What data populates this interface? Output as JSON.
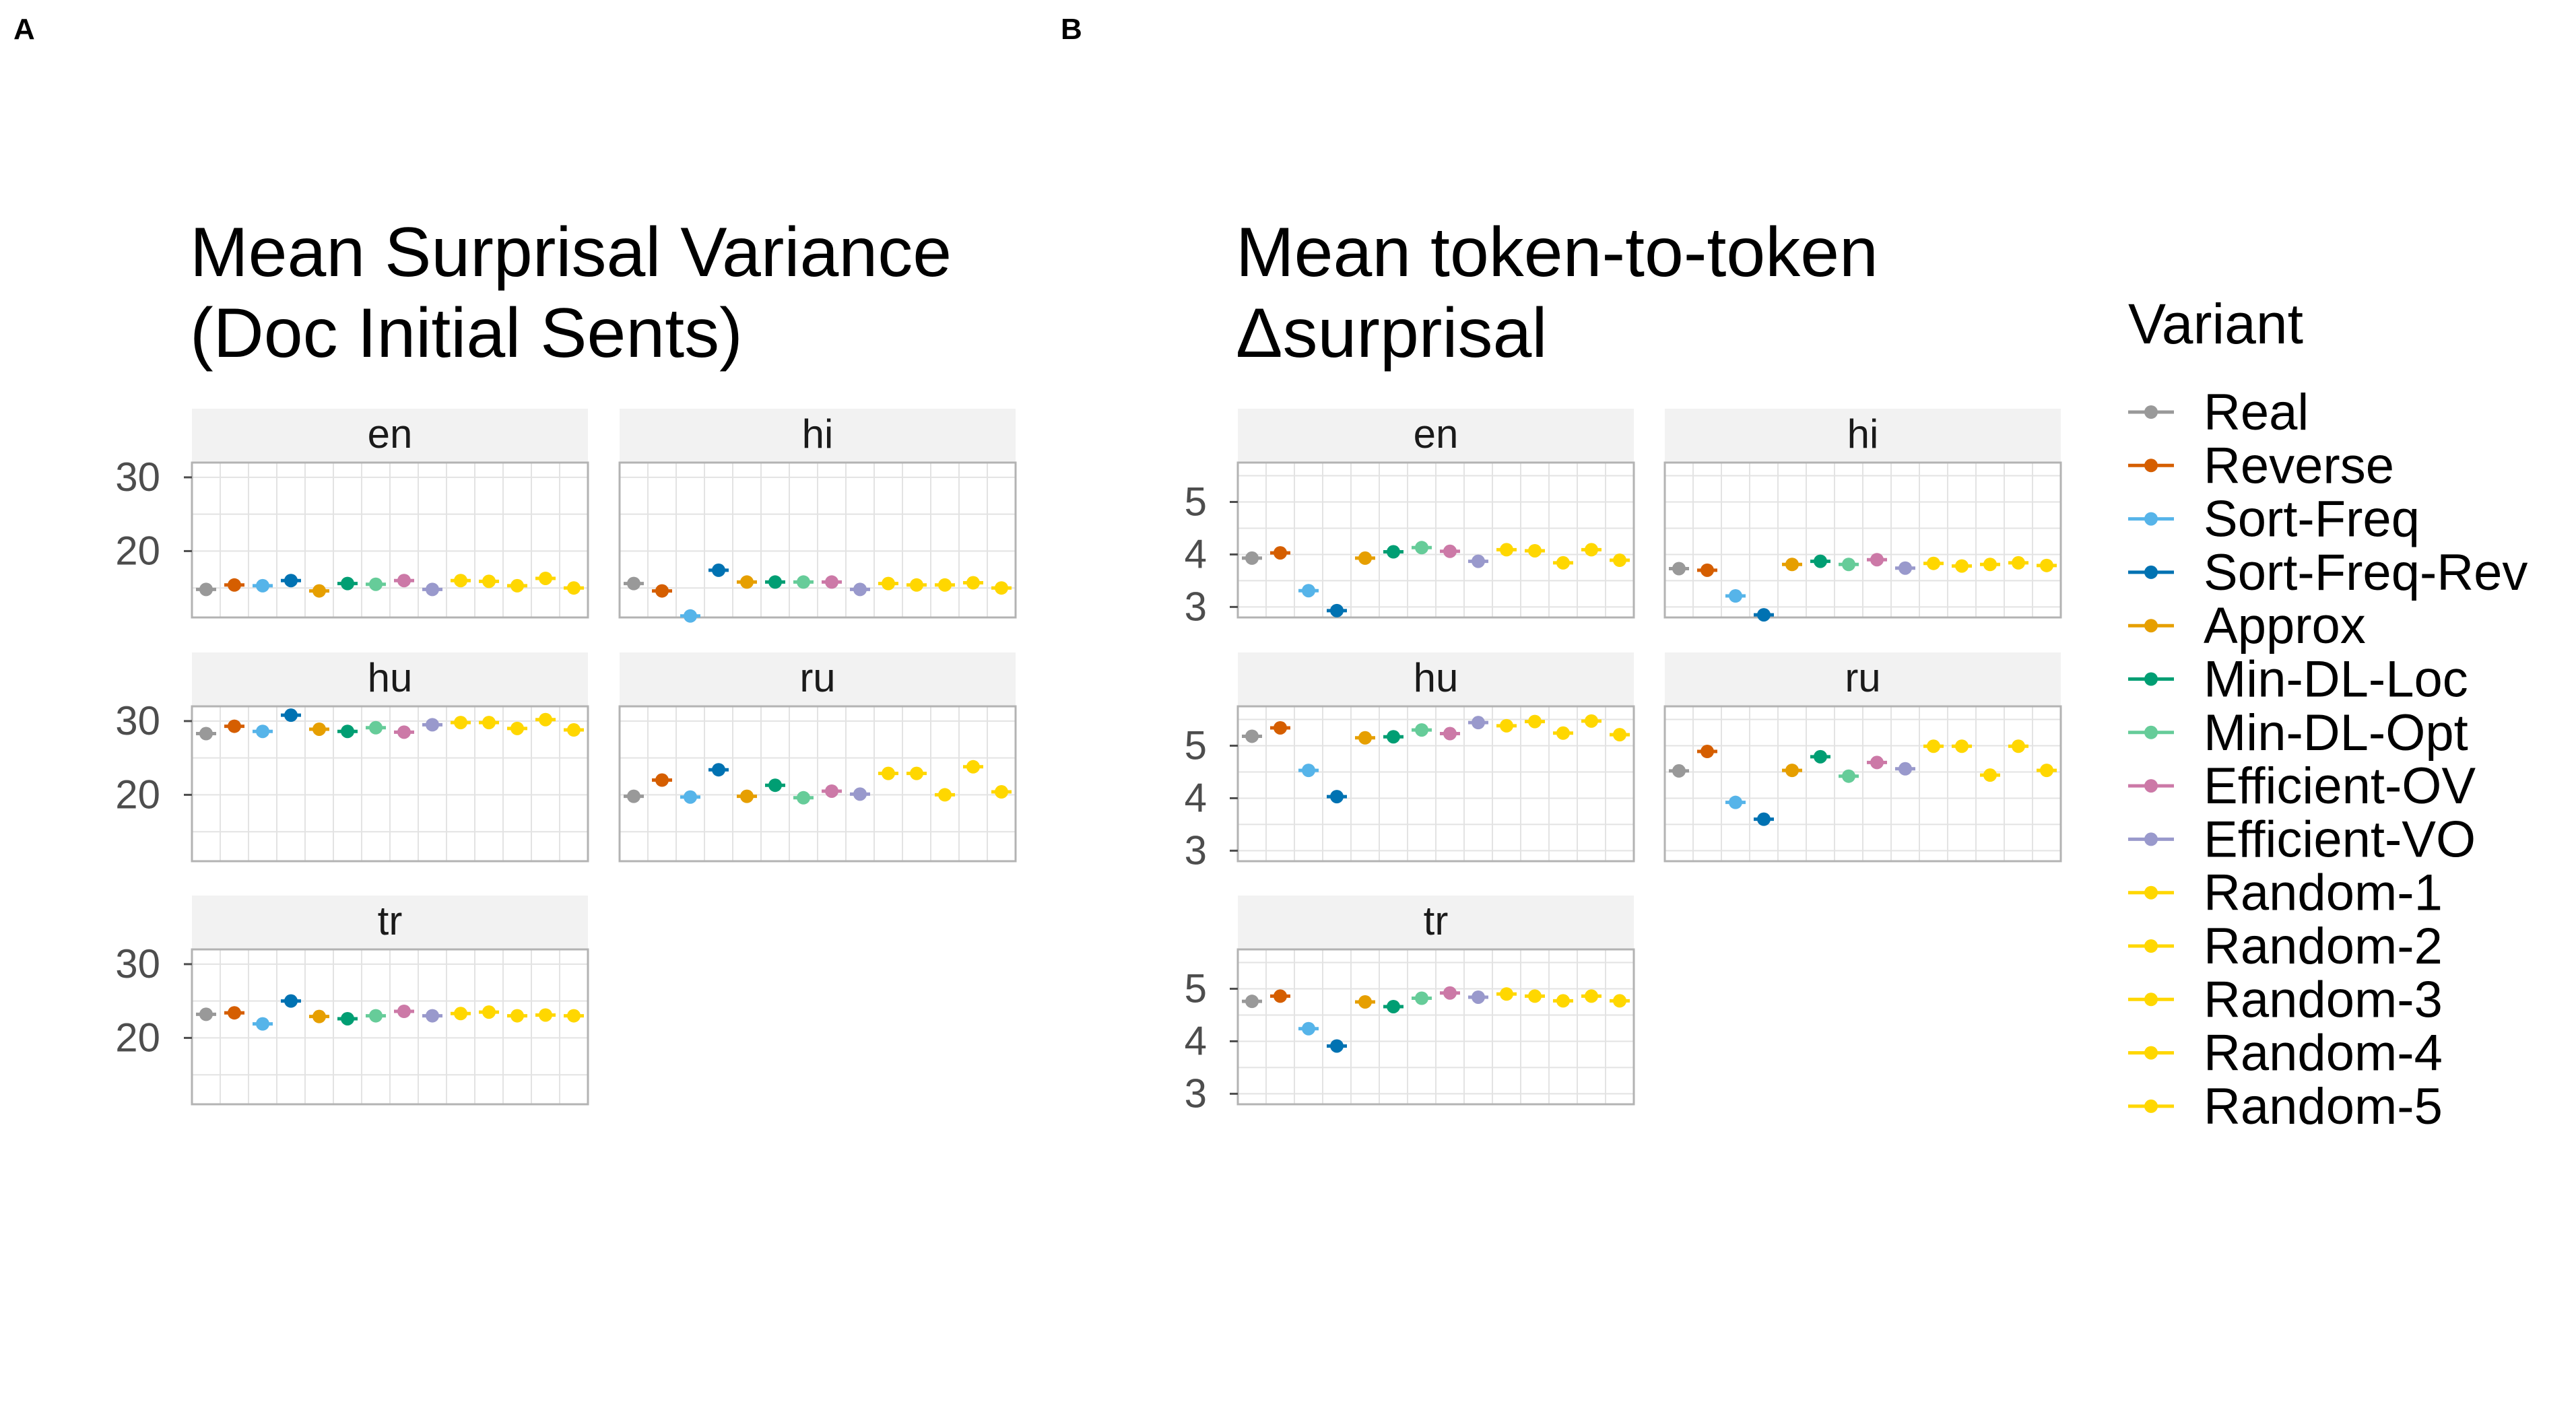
{
  "panel_labels": [
    "A",
    "B"
  ],
  "legend": {
    "title": "Variant",
    "items": [
      {
        "label": "Real",
        "color": "#999999"
      },
      {
        "label": "Reverse",
        "color": "#D55E00"
      },
      {
        "label": "Sort-Freq",
        "color": "#56B4E9"
      },
      {
        "label": "Sort-Freq-Rev",
        "color": "#0072B2"
      },
      {
        "label": "Approx",
        "color": "#E69F00"
      },
      {
        "label": "Min-DL-Loc",
        "color": "#009E73"
      },
      {
        "label": "Min-DL-Opt",
        "color": "#66CC99"
      },
      {
        "label": "Efficient-OV",
        "color": "#CC79A7"
      },
      {
        "label": "Efficient-VO",
        "color": "#9999CC"
      },
      {
        "label": "Random-1",
        "color": "#FFD700"
      },
      {
        "label": "Random-2",
        "color": "#FFD700"
      },
      {
        "label": "Random-3",
        "color": "#FFD700"
      },
      {
        "label": "Random-4",
        "color": "#FFD700"
      },
      {
        "label": "Random-5",
        "color": "#FFD700"
      }
    ]
  },
  "chart_data": [
    {
      "type": "scatter",
      "panel": "A",
      "title_lines": [
        "Mean Surprisal Variance",
        "(Doc Initial Sents)"
      ],
      "ylim": [
        11,
        32
      ],
      "yticks": [
        20,
        30
      ],
      "grid": true,
      "facets": [
        {
          "name": "en",
          "values": [
            14.8,
            15.4,
            15.3,
            16.0,
            14.6,
            15.6,
            15.5,
            16.0,
            14.8,
            16.0,
            15.9,
            15.3,
            16.3,
            15.0
          ]
        },
        {
          "name": "hi",
          "values": [
            15.6,
            14.6,
            11.2,
            17.4,
            15.8,
            15.8,
            15.8,
            15.8,
            14.8,
            15.6,
            15.4,
            15.4,
            15.7,
            15.0
          ]
        },
        {
          "name": "hu",
          "values": [
            28.3,
            29.3,
            28.6,
            30.8,
            28.9,
            28.6,
            29.1,
            28.5,
            29.5,
            29.8,
            29.8,
            29.0,
            30.2,
            28.8
          ]
        },
        {
          "name": "ru",
          "values": [
            19.8,
            22.0,
            19.7,
            23.4,
            19.8,
            21.3,
            19.6,
            20.5,
            20.1,
            22.9,
            22.9,
            20.0,
            23.8,
            20.4
          ]
        },
        {
          "name": "tr",
          "values": [
            23.2,
            23.4,
            21.9,
            25.0,
            22.9,
            22.6,
            23.0,
            23.6,
            23.0,
            23.3,
            23.5,
            23.0,
            23.1,
            23.0
          ]
        }
      ]
    },
    {
      "type": "scatter",
      "panel": "B",
      "title_lines": [
        "Mean token-to-token",
        "Δsurprisal"
      ],
      "ylim": [
        2.8,
        5.75
      ],
      "yticks": [
        3,
        4,
        5
      ],
      "grid": true,
      "facets": [
        {
          "name": "en",
          "values": [
            3.93,
            4.03,
            3.31,
            2.93,
            3.93,
            4.05,
            4.13,
            4.06,
            3.87,
            4.09,
            4.07,
            3.84,
            4.09,
            3.89
          ]
        },
        {
          "name": "hi",
          "values": [
            3.73,
            3.7,
            3.21,
            2.85,
            3.81,
            3.87,
            3.81,
            3.9,
            3.74,
            3.83,
            3.78,
            3.81,
            3.84,
            3.79
          ]
        },
        {
          "name": "hu",
          "values": [
            5.18,
            5.34,
            4.53,
            4.03,
            5.15,
            5.17,
            5.3,
            5.23,
            5.44,
            5.38,
            5.46,
            5.24,
            5.47,
            5.21
          ]
        },
        {
          "name": "ru",
          "values": [
            4.52,
            4.89,
            3.92,
            3.6,
            4.53,
            4.79,
            4.42,
            4.68,
            4.56,
            4.99,
            4.99,
            4.44,
            4.99,
            4.53
          ]
        },
        {
          "name": "tr",
          "values": [
            4.76,
            4.86,
            4.24,
            3.91,
            4.75,
            4.66,
            4.82,
            4.92,
            4.84,
            4.9,
            4.86,
            4.77,
            4.86,
            4.77
          ]
        }
      ]
    }
  ]
}
